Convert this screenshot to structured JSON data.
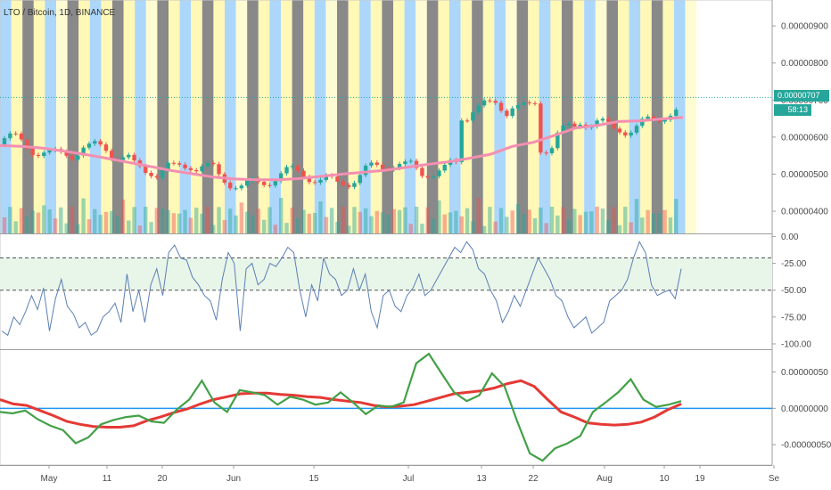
{
  "header": {
    "symbol_line": "LTO / Bitcoin, 1D, BINANCE"
  },
  "price_tag": "0.00000707",
  "countdown": "58:13",
  "colors": {
    "up": "#26a69a",
    "down": "#ef5350",
    "ma": "#f48fb1",
    "rsi_line": "#5b7fb5",
    "rsi_band": "#e8f5e9",
    "osc_fast": "#43a047",
    "osc_slow": "#e53935",
    "zero_line": "#2196f3",
    "bg_bands": [
      "#90caf9",
      "#fff59d",
      "#616161",
      "#fff9c4"
    ]
  },
  "chart_data": [
    {
      "type": "candlestick",
      "title": "LTO / Bitcoin, 1D, BINANCE",
      "y_tick_labels": [
        "0.00000900",
        "0.00000800",
        "0.00000700",
        "0.00000600",
        "0.00000500",
        "0.00000400"
      ],
      "ylim": [
        3.4e-06,
        9.7e-06
      ],
      "x_tick_labels": [
        "May",
        "11",
        "20",
        "Jun",
        "15",
        "Jul",
        "13",
        "22",
        "Aug",
        "10",
        "19",
        "Se"
      ],
      "ma_values": [
        5.77e-06,
        5.75e-06,
        5.7e-06,
        5.62e-06,
        5.53e-06,
        5.43e-06,
        5.32e-06,
        5.21e-06,
        5.1e-06,
        5.01e-06,
        4.92e-06,
        4.87e-06,
        4.85e-06,
        4.85e-06,
        4.88e-06,
        4.94e-06,
        5e-06,
        5.05e-06,
        5.1e-06,
        5.18e-06,
        5.26e-06,
        5.33e-06,
        5.43e-06,
        5.54e-06,
        5.75e-06,
        5.86e-06,
        6.05e-06,
        6.25e-06,
        6.32e-06,
        6.42e-06,
        6.44e-06,
        6.49e-06,
        6.53e-06
      ],
      "last_price": 7.07e-06
    },
    {
      "type": "line",
      "y_tick_labels": [
        "0.00",
        "-25.00",
        "-50.00",
        "-75.00",
        "-100.00"
      ],
      "ylim": [
        -105,
        2
      ],
      "band": [
        -20,
        -50
      ],
      "values": [
        -88,
        -92,
        -75,
        -82,
        -70,
        -55,
        -68,
        -48,
        -88,
        -58,
        -40,
        -65,
        -72,
        -85,
        -80,
        -92,
        -88,
        -75,
        -70,
        -62,
        -80,
        -35,
        -70,
        -50,
        -80,
        -45,
        -30,
        -55,
        -15,
        -8,
        -20,
        -22,
        -38,
        -45,
        -55,
        -60,
        -78,
        -40,
        -15,
        -25,
        -88,
        -30,
        -25,
        -45,
        -40,
        -25,
        -28,
        -20,
        -10,
        -15,
        -50,
        -75,
        -45,
        -60,
        -20,
        -35,
        -40,
        -55,
        -50,
        -30,
        -50,
        -35,
        -70,
        -85,
        -55,
        -50,
        -65,
        -70,
        -55,
        -48,
        -35,
        -55,
        -50,
        -40,
        -30,
        -20,
        -10,
        -15,
        -5,
        -12,
        -30,
        -35,
        -50,
        -60,
        -80,
        -70,
        -55,
        -65,
        -50,
        -35,
        -20,
        -30,
        -40,
        -55,
        -60,
        -75,
        -85,
        -80,
        -75,
        -90,
        -85,
        -80,
        -60,
        -55,
        -50,
        -40,
        -20,
        -5,
        -15,
        -45,
        -55,
        -52,
        -50,
        -58,
        -30
      ]
    },
    {
      "type": "line",
      "y_tick_labels": [
        "0.00000050",
        "0.00000000",
        "-0.00000050"
      ],
      "ylim": [
        -7.8e-07,
        8e-07
      ],
      "series": [
        {
          "values": [
            -5e-08,
            -7e-08,
            -3e-08,
            -1.5e-07,
            -2.4e-07,
            -3e-07,
            -4.8e-07,
            -4e-07,
            -2.2e-07,
            -1.6e-07,
            -1.2e-07,
            -1e-07,
            -1.8e-07,
            -2e-07,
            -2e-08,
            1.2e-07,
            3.8e-07,
            8e-08,
            -5e-08,
            2.5e-07,
            2.2e-07,
            1.8e-07,
            5e-08,
            1.6e-07,
            1.2e-07,
            5e-08,
            8e-08,
            2.2e-07,
            8e-08,
            -8e-08,
            4e-08,
            2e-08,
            8e-08,
            6.2e-07,
            7.5e-07,
            4.8e-07,
            2.2e-07,
            1e-07,
            1.8e-07,
            4.8e-07,
            3e-07,
            -1.8e-07,
            -6.2e-07,
            -7.2e-07,
            -5.5e-07,
            -4.8e-07,
            -3.8e-07,
            -5e-08,
            8e-08,
            2.2e-07,
            4e-07,
            1.2e-07,
            2e-08,
            5e-08,
            1e-07
          ]
        },
        {
          "values": [
            1.2e-07,
            6e-08,
            4e-08,
            -3e-08,
            -1e-07,
            -1.8e-07,
            -2.2e-07,
            -2.5e-07,
            -2.6e-07,
            -2.6e-07,
            -2.4e-07,
            -1.7e-07,
            -1.2e-07,
            -6e-08,
            -1e-08,
            6e-08,
            1.2e-07,
            1.6e-07,
            2e-07,
            2.1e-07,
            2.1e-07,
            1.9e-07,
            1.8e-07,
            1.6e-07,
            1.5e-07,
            1.2e-07,
            1e-07,
            8e-08,
            4e-08,
            2e-08,
            3e-08,
            5e-08,
            1e-07,
            1.5e-07,
            2e-07,
            2.2e-07,
            2.4e-07,
            2.8e-07,
            3.4e-07,
            3.8e-07,
            3e-07,
            1.2e-07,
            -5e-08,
            -1.2e-07,
            -2e-07,
            -2.2e-07,
            -2.3e-07,
            -2.2e-07,
            -1.9e-07,
            -1.2e-07,
            -2e-08,
            6e-08
          ]
        }
      ],
      "zero_line": 0
    }
  ]
}
